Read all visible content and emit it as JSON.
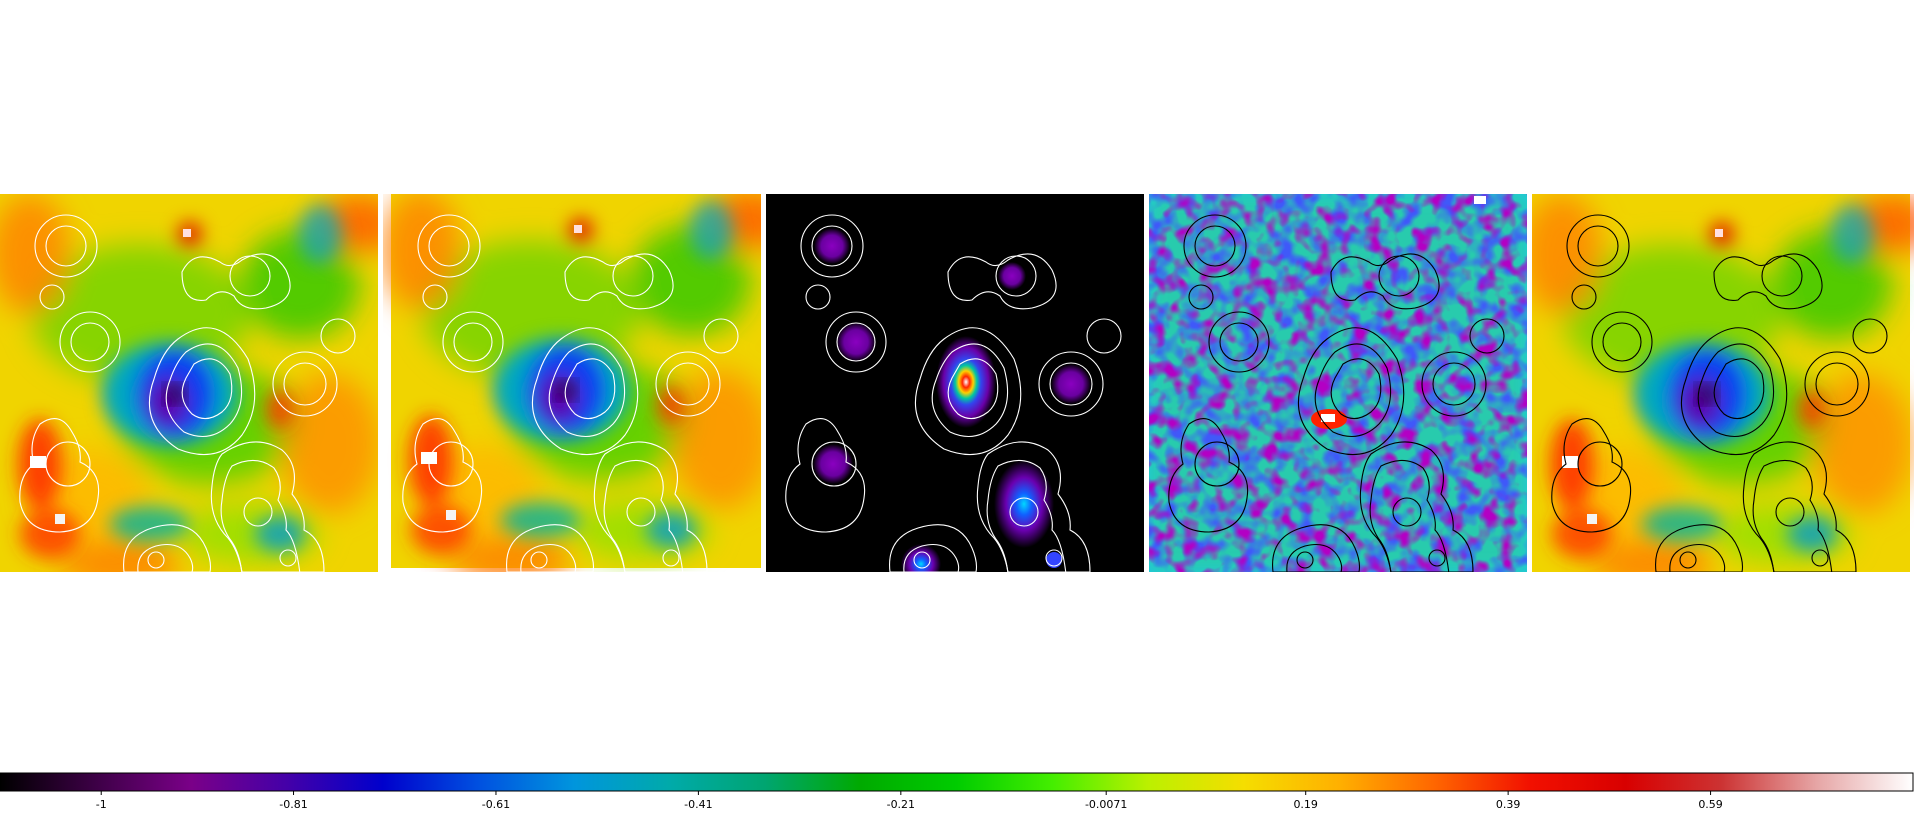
{
  "chart_data": {
    "type": "heatmap",
    "panel_count": 5,
    "colormap": "nipy_spectral",
    "panels": [
      {
        "background": "smooth-field-blue-core",
        "contour_color": "#ffffff"
      },
      {
        "background": "smooth-field-blue-core",
        "contour_color": "#ffffff"
      },
      {
        "background": "sources-on-black",
        "contour_color": "#ffffff"
      },
      {
        "background": "noisy-field",
        "contour_color": "#000000"
      },
      {
        "background": "smooth-field-blue-core",
        "contour_color": "#000000"
      }
    ],
    "colorbar": {
      "min": -1.1,
      "max": 0.79,
      "ticks": [
        {
          "value": -1,
          "label": "-1"
        },
        {
          "value": -0.81,
          "label": "-0.81"
        },
        {
          "value": -0.61,
          "label": "-0.61"
        },
        {
          "value": -0.41,
          "label": "-0.41"
        },
        {
          "value": -0.21,
          "label": "-0.21"
        },
        {
          "value": -0.0071,
          "label": "-0.0071"
        },
        {
          "value": 0.19,
          "label": "0.19"
        },
        {
          "value": 0.39,
          "label": "0.39"
        },
        {
          "value": 0.59,
          "label": "0.59"
        }
      ]
    }
  }
}
